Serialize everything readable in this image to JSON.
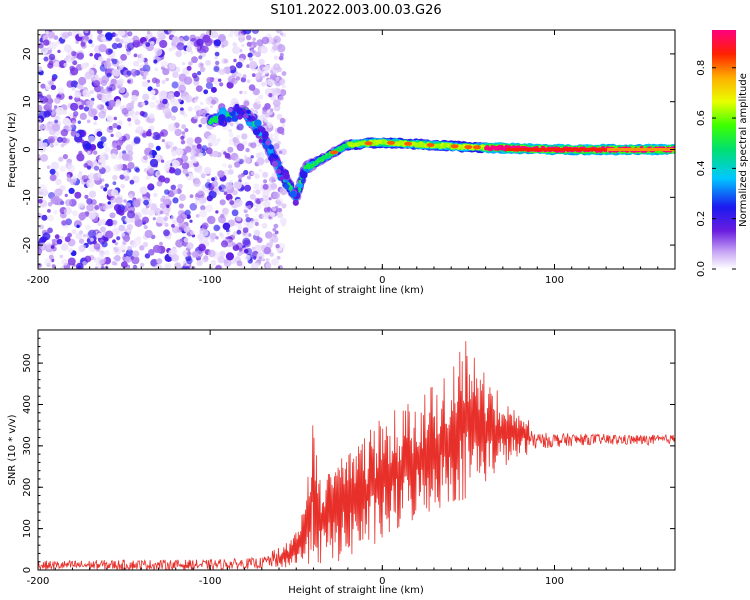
{
  "figure_title": "S101.2022.003.00.03.G26",
  "colors": {
    "snr_line": "#e8302a",
    "frame": "#000000",
    "background": "#ffffff"
  },
  "chart_data": [
    {
      "type": "heatmap",
      "title": "S101.2022.003.00.03.G26",
      "xlabel": "Height of straight line (km)",
      "ylabel": "Frequency (Hz)",
      "xlim": [
        -200,
        170
      ],
      "ylim": [
        -25,
        25
      ],
      "x_ticks": [
        -200,
        -100,
        0,
        100
      ],
      "y_ticks": [
        -20,
        -10,
        0,
        10,
        20
      ],
      "colorbar": {
        "label": "Normalized spectral amplitude",
        "range": [
          0.0,
          0.95
        ],
        "ticks": [
          "0.0",
          "0.2",
          "0.4",
          "0.6",
          "0.8"
        ],
        "colormap": "rainbow (white/violet low → blue → cyan → green → yellow → red → magenta high)"
      },
      "signal_track": {
        "description_points": [
          {
            "x": -100,
            "y": 6
          },
          {
            "x": -80,
            "y": 8
          },
          {
            "x": -70,
            "y": 3
          },
          {
            "x": -60,
            "y": -4
          },
          {
            "x": -50,
            "y": -10
          },
          {
            "x": -45,
            "y": -4
          },
          {
            "x": -35,
            "y": -2
          },
          {
            "x": -20,
            "y": 1
          },
          {
            "x": 0,
            "y": 1.5
          },
          {
            "x": 50,
            "y": 0.5
          },
          {
            "x": 100,
            "y": 0
          },
          {
            "x": 170,
            "y": 0
          }
        ],
        "noise_region_x": [
          -200,
          -65
        ]
      }
    },
    {
      "type": "line",
      "xlabel": "Height of straight line (km)",
      "ylabel": "SNR (10 * v/v)",
      "xlim": [
        -200,
        170
      ],
      "ylim": [
        0,
        580
      ],
      "x_ticks": [
        -200,
        -100,
        0,
        100
      ],
      "y_ticks": [
        0,
        100,
        200,
        300,
        400,
        500
      ],
      "envelope": [
        {
          "x": -200,
          "lo": 0,
          "hi": 22
        },
        {
          "x": -150,
          "lo": 0,
          "hi": 25
        },
        {
          "x": -100,
          "lo": 0,
          "hi": 25
        },
        {
          "x": -70,
          "lo": 3,
          "hi": 30
        },
        {
          "x": -55,
          "lo": 5,
          "hi": 70
        },
        {
          "x": -45,
          "lo": 10,
          "hi": 150
        },
        {
          "x": -40,
          "lo": 20,
          "hi": 380
        },
        {
          "x": -35,
          "lo": 5,
          "hi": 230
        },
        {
          "x": -20,
          "lo": 25,
          "hi": 300
        },
        {
          "x": 0,
          "lo": 60,
          "hi": 370
        },
        {
          "x": 20,
          "lo": 120,
          "hi": 420
        },
        {
          "x": 40,
          "lo": 160,
          "hi": 480
        },
        {
          "x": 50,
          "lo": 170,
          "hi": 575
        },
        {
          "x": 60,
          "lo": 210,
          "hi": 470
        },
        {
          "x": 75,
          "lo": 260,
          "hi": 400
        },
        {
          "x": 90,
          "lo": 290,
          "hi": 355
        },
        {
          "x": 120,
          "lo": 300,
          "hi": 345
        },
        {
          "x": 160,
          "lo": 300,
          "hi": 340
        },
        {
          "x": 170,
          "lo": 305,
          "hi": 340
        }
      ]
    }
  ]
}
